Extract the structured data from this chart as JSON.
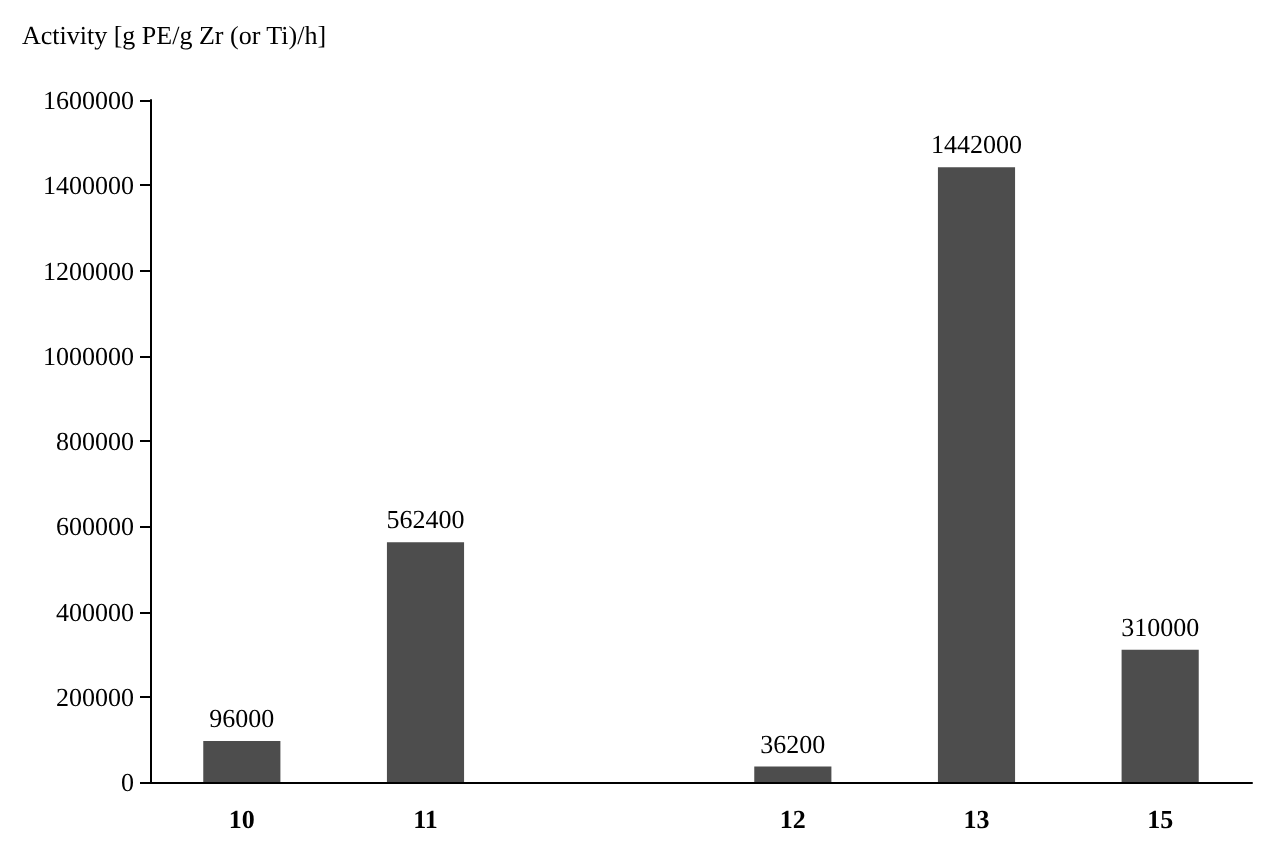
{
  "chart_data": {
    "type": "bar",
    "ylabel": "Activity [g PE/g Zr (or Ti)/h]",
    "categories": [
      "10",
      "11",
      null,
      "12",
      "13",
      "15"
    ],
    "values": [
      96000,
      562400,
      null,
      36200,
      1442000,
      310000
    ],
    "color": "#4d4d4d",
    "ylim": [
      0,
      1600000
    ],
    "yticks": [
      0,
      200000,
      400000,
      600000,
      800000,
      1000000,
      1200000,
      1400000,
      1600000
    ],
    "grid": false,
    "data_labels": true
  }
}
